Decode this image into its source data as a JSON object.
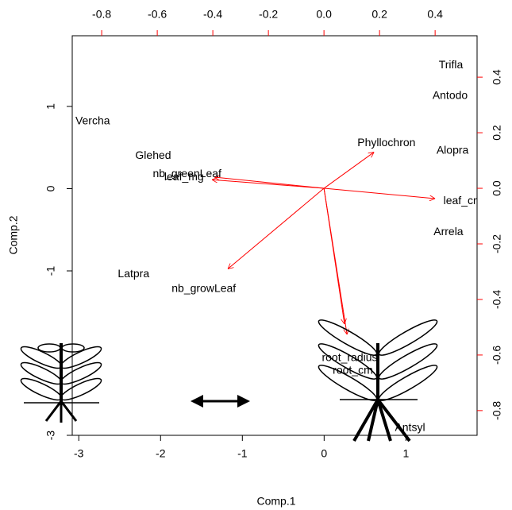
{
  "chart_data": {
    "type": "biplot",
    "x_label": "Comp.1",
    "y_label": "Comp.2",
    "xlim": [
      -3.08,
      1.87
    ],
    "ylim": [
      -3.0,
      1.86
    ],
    "xticks": [
      -3,
      -2,
      -1,
      0,
      1
    ],
    "yticks": [
      -3,
      -1,
      0,
      1
    ],
    "x2lim": [
      -0.906,
      0.551
    ],
    "y2lim": [
      -0.889,
      0.549
    ],
    "x2ticks": [
      {
        "value": -0.8,
        "label": "-0.8"
      },
      {
        "value": -0.6,
        "label": "-0.6"
      },
      {
        "value": -0.4,
        "label": "-0.4"
      },
      {
        "value": -0.2,
        "label": "-0.2"
      },
      {
        "value": 0,
        "label": "0.0"
      },
      {
        "value": 0.2,
        "label": "0.2"
      },
      {
        "value": 0.4,
        "label": "0.4"
      }
    ],
    "y2ticks": [
      {
        "value": 0.4,
        "label": "0.4"
      },
      {
        "value": 0.2,
        "label": "0.2"
      },
      {
        "value": 0,
        "label": "0.0"
      },
      {
        "value": -0.2,
        "label": "-0.2"
      },
      {
        "value": -0.4,
        "label": "-0.4"
      },
      {
        "value": -0.6,
        "label": "-0.6"
      },
      {
        "value": -0.8,
        "label": "-0.8"
      }
    ],
    "points": {
      "color": "#000000",
      "labels": [
        "Trifla",
        "Antodo",
        "Vercha",
        "Glehed",
        "Alopra",
        "Arrela",
        "Latpra",
        "Antsyl"
      ],
      "x": [
        1.55,
        1.54,
        -2.83,
        -2.09,
        1.57,
        1.52,
        -2.33,
        1.05
      ],
      "y": [
        1.5,
        1.13,
        0.82,
        0.4,
        0.46,
        -0.53,
        -1.04,
        -2.91
      ]
    },
    "arrows": {
      "color": "#ff0000",
      "labels": [
        "Phyllochron",
        "leaf_cm",
        "leaf_mg",
        "nb_greenLeaf",
        "nb_growLeaf",
        "root_radius",
        "root_cm"
      ],
      "x": [
        0.18,
        0.4,
        -0.403,
        -0.394,
        -0.346,
        0.074,
        0.083
      ],
      "y": [
        0.13,
        -0.037,
        0.031,
        0.04,
        -0.29,
        -0.489,
        -0.526
      ]
    }
  }
}
